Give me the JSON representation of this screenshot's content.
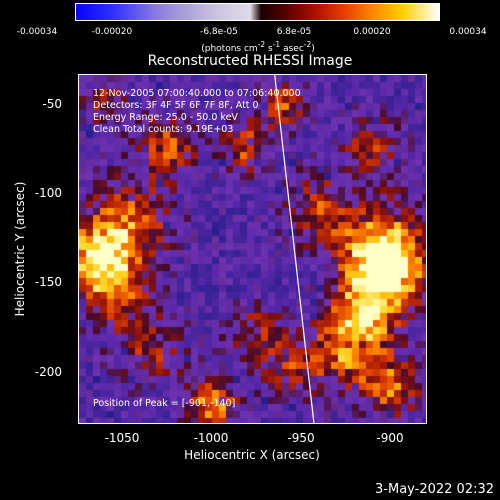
{
  "colorbar": {
    "ticks": [
      "-0.00034",
      "-0.00020",
      "-6.8e-05",
      "6.8e-05",
      "0.00020",
      "0.00034"
    ],
    "units_html": "(photons cm<sup>-2</sup> s<sup>-1</sup> asec<sup>-2</sup>)",
    "range": [
      -0.00034,
      0.00034
    ]
  },
  "chart_data": {
    "type": "heatmap",
    "title": "Reconstructed RHESSI Image",
    "xlabel": "Heliocentric X (arcsec)",
    "ylabel": "Heliocentric Y (arcsec)",
    "xlim": [
      -1075,
      -880
    ],
    "ylim": [
      -225,
      -30
    ],
    "x_ticks": [
      "-1050",
      "-1000",
      "-950",
      "-900"
    ],
    "y_ticks": [
      "-50",
      "-100",
      "-150",
      "-200"
    ],
    "annotations": [
      "12-Nov-2005 07:00:40.000 to 07:06:40.000",
      "Detectors: 3F 4F 5F 6F 7F 8F, Att 0",
      "Energy Range: 25.0 - 50.0 keV",
      "Clean     Total counts: 9.19E+03"
    ],
    "peak_label": "Position of Peak = [-901,-140]",
    "peak": [
      -901,
      -140
    ],
    "limb_line": {
      "x1": -965,
      "y1": -30,
      "x2": -943,
      "y2": -225
    }
  },
  "footer": {
    "date": "3-May-2022 02:32"
  }
}
